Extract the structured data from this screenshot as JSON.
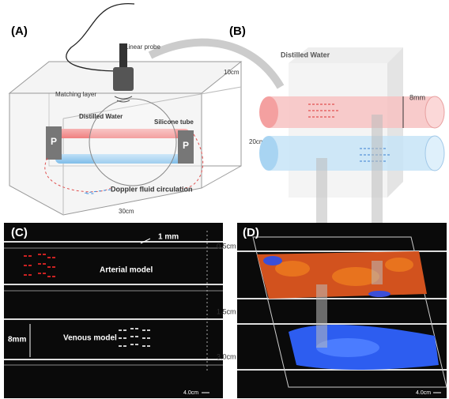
{
  "panel_a": {
    "label": "(A)",
    "probe": "Linear probe",
    "matching_layer": "Matching layer",
    "water": "Distilled Water",
    "tube": "Silicone tube",
    "pump_left": "P",
    "pump_right": "P",
    "depth": "10cm",
    "height": "20cm",
    "width": "30cm",
    "circulation": "Doppler fluid circulation"
  },
  "panel_b": {
    "label": "(B)",
    "water": "Distilled Water",
    "diameter": "8mm"
  },
  "panel_c": {
    "label": "(C)",
    "wall": "1 mm",
    "depth_1": "0.5cm",
    "arterial": "Arterial model",
    "depth_2": "1.5cm",
    "diameter": "8mm",
    "venous": "Venous model",
    "depth_3": "3.0cm",
    "scale": "4.0cm"
  },
  "panel_d": {
    "label": "(D)",
    "scale": "4.0cm"
  }
}
